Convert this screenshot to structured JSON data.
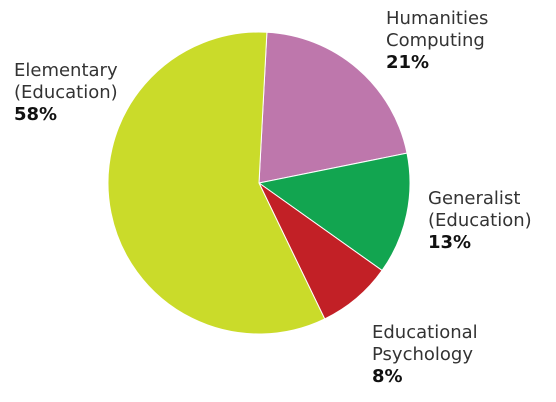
{
  "chart_data": {
    "type": "pie",
    "title": "",
    "slices": [
      {
        "label": "Humanities\nComputing",
        "value": 21,
        "percent_label": "21%",
        "color": "#BE77AC"
      },
      {
        "label": "Generalist\n(Education)",
        "value": 13,
        "percent_label": "13%",
        "color": "#12A550"
      },
      {
        "label": "Educational\nPsychology",
        "value": 8,
        "percent_label": "8%",
        "color": "#C22026"
      },
      {
        "label": "Elementary\n(Education)",
        "value": 58,
        "percent_label": "58%",
        "color": "#CADB2A"
      }
    ],
    "start_angle_deg": 3,
    "direction": "clockwise",
    "legend": "none"
  }
}
